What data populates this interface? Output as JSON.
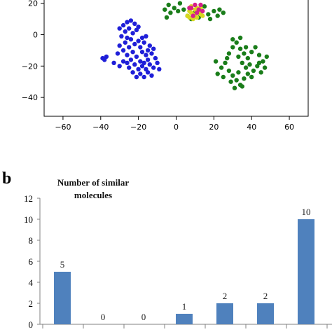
{
  "chart_data": [
    {
      "type": "scatter",
      "title": "",
      "xlabel": "",
      "ylabel": "",
      "xlim": [
        -70,
        70
      ],
      "ylim": [
        -52,
        23
      ],
      "xticks": [
        -60,
        -40,
        -20,
        0,
        20,
        40,
        60
      ],
      "yticks": [
        20,
        0,
        -20,
        -40
      ],
      "grid": false,
      "clusters": [
        {
          "color": "#1f1fd8",
          "points": [
            [
              -28,
              6
            ],
            [
              -26,
              8
            ],
            [
              -24,
              9
            ],
            [
              -22,
              7
            ],
            [
              -30,
              4
            ],
            [
              -25,
              4
            ],
            [
              -20,
              5
            ],
            [
              -27,
              2
            ],
            [
              -23,
              1
            ],
            [
              -21,
              3
            ],
            [
              -29,
              -1
            ],
            [
              -26,
              -2
            ],
            [
              -24,
              -3
            ],
            [
              -18,
              -2
            ],
            [
              -16,
              -1
            ],
            [
              -20,
              -4
            ],
            [
              -27,
              -5
            ],
            [
              -22,
              -6
            ],
            [
              -17,
              -5
            ],
            [
              -30,
              -7
            ],
            [
              -25,
              -8
            ],
            [
              -19,
              -8
            ],
            [
              -14,
              -7
            ],
            [
              -28,
              -10
            ],
            [
              -23,
              -11
            ],
            [
              -18,
              -11
            ],
            [
              -15,
              -10
            ],
            [
              -12,
              -9
            ],
            [
              -26,
              -13
            ],
            [
              -21,
              -14
            ],
            [
              -16,
              -13
            ],
            [
              -13,
              -12
            ],
            [
              -24,
              -16
            ],
            [
              -19,
              -17
            ],
            [
              -15,
              -16
            ],
            [
              -11,
              -15
            ],
            [
              -22,
              -19
            ],
            [
              -18,
              -20
            ],
            [
              -14,
              -19
            ],
            [
              -25,
              -21
            ],
            [
              -20,
              -22
            ],
            [
              -16,
              -22
            ],
            [
              -12,
              -21
            ],
            [
              -23,
              -24
            ],
            [
              -19,
              -25
            ],
            [
              -15,
              -24
            ],
            [
              -21,
              -27
            ],
            [
              -17,
              -27
            ],
            [
              -13,
              -26
            ],
            [
              -39,
              -15
            ],
            [
              -37,
              -14
            ],
            [
              -38,
              -16
            ],
            [
              -31,
              -12
            ],
            [
              -33,
              -18
            ],
            [
              -30,
              -20
            ],
            [
              -10,
              -18
            ],
            [
              -9,
              -22
            ],
            [
              -26,
              -18
            ],
            [
              -17,
              -18
            ],
            [
              -28,
              -17
            ]
          ]
        },
        {
          "color": "#1a7d1a",
          "points": [
            [
              -5,
              11
            ],
            [
              -3,
              14
            ],
            [
              -1,
              17
            ],
            [
              1,
              15
            ],
            [
              -4,
              19
            ],
            [
              2,
              20
            ],
            [
              4,
              16
            ],
            [
              6,
              12
            ],
            [
              8,
              10
            ],
            [
              10,
              14
            ],
            [
              13,
              15
            ],
            [
              15,
              18
            ],
            [
              17,
              13
            ],
            [
              20,
              15
            ],
            [
              22,
              12
            ],
            [
              25,
              14
            ],
            [
              -6,
              16
            ],
            [
              12,
              11
            ],
            [
              18,
              10
            ],
            [
              23,
              16
            ],
            [
              28,
              -12
            ],
            [
              30,
              -8
            ],
            [
              32,
              -5
            ],
            [
              34,
              -9
            ],
            [
              36,
              -12
            ],
            [
              38,
              -15
            ],
            [
              40,
              -11
            ],
            [
              42,
              -8
            ],
            [
              44,
              -13
            ],
            [
              46,
              -17
            ],
            [
              48,
              -14
            ],
            [
              33,
              -14
            ],
            [
              35,
              -18
            ],
            [
              37,
              -21
            ],
            [
              39,
              -19
            ],
            [
              41,
              -23
            ],
            [
              43,
              -20
            ],
            [
              45,
              -24
            ],
            [
              47,
              -21
            ],
            [
              26,
              -18
            ],
            [
              24,
              -21
            ],
            [
              22,
              -25
            ],
            [
              28,
              -23
            ],
            [
              30,
              -26
            ],
            [
              32,
              -29
            ],
            [
              34,
              -32
            ],
            [
              29,
              -30
            ],
            [
              31,
              -34
            ],
            [
              36,
              -28
            ],
            [
              38,
              -25
            ],
            [
              30,
              -3
            ],
            [
              34,
              -2
            ],
            [
              21,
              -17
            ],
            [
              25,
              -27
            ],
            [
              40,
              -27
            ],
            [
              44,
              -18
            ],
            [
              27,
              -15
            ],
            [
              33,
              -24
            ],
            [
              35,
              -33
            ],
            [
              37,
              -8
            ]
          ]
        },
        {
          "color": "#d8d81f",
          "points": [
            [
              6,
              12
            ],
            [
              7,
              15
            ],
            [
              8,
              18
            ],
            [
              9,
              13
            ],
            [
              10,
              16
            ],
            [
              11,
              11
            ],
            [
              12,
              14
            ],
            [
              13,
              17
            ],
            [
              14,
              12
            ],
            [
              9,
              10
            ],
            [
              7,
              11
            ],
            [
              11,
              17
            ],
            [
              13,
              13
            ],
            [
              8,
              14
            ],
            [
              10,
              12
            ]
          ]
        },
        {
          "color": "#d61f8a",
          "points": [
            [
              8,
              17
            ],
            [
              10,
              19
            ],
            [
              12,
              16
            ],
            [
              14,
              15
            ],
            [
              9,
              12
            ],
            [
              13,
              19
            ],
            [
              7,
              17
            ],
            [
              11,
              14
            ]
          ]
        }
      ]
    },
    {
      "type": "bar",
      "title": "",
      "ylabel": "Number of similar molecules",
      "ylabel_lines": [
        "Number of similar",
        "molecules"
      ],
      "xlabel": "",
      "ylim": [
        0,
        12
      ],
      "yticks": [
        0,
        2,
        4,
        6,
        8,
        10,
        12
      ],
      "values": [
        5,
        0,
        0,
        1,
        2,
        2,
        10
      ],
      "data_labels": [
        "5",
        "0",
        "0",
        "1",
        "2",
        "2",
        "10"
      ],
      "bar_color": "#4f81bd",
      "grid": false
    }
  ],
  "panel_b_label": "b"
}
